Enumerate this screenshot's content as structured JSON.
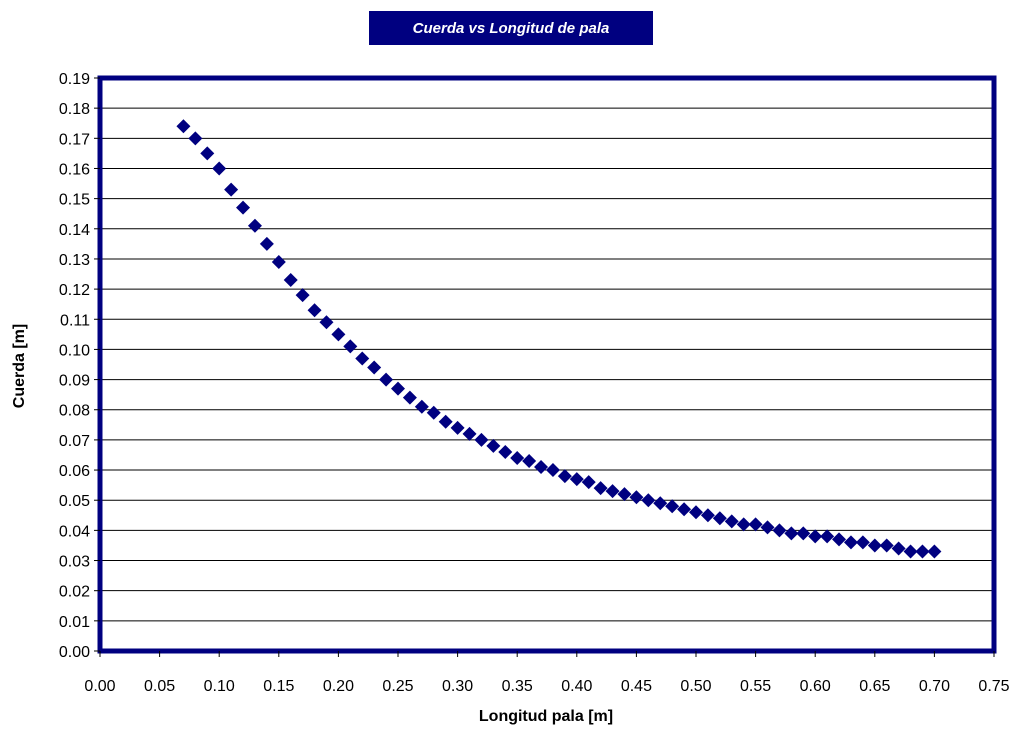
{
  "chart_data": {
    "type": "scatter",
    "title": "Cuerda vs Longitud de pala",
    "xlabel": "Longitud pala [m]",
    "ylabel": "Cuerda [m]",
    "xlim": [
      0.0,
      0.75
    ],
    "ylim": [
      0.0,
      0.19
    ],
    "x_ticks": [
      "0.00",
      "0.05",
      "0.10",
      "0.15",
      "0.20",
      "0.25",
      "0.30",
      "0.35",
      "0.40",
      "0.45",
      "0.50",
      "0.55",
      "0.60",
      "0.65",
      "0.70",
      "0.75"
    ],
    "y_ticks": [
      "0.00",
      "0.01",
      "0.02",
      "0.03",
      "0.04",
      "0.05",
      "0.06",
      "0.07",
      "0.08",
      "0.09",
      "0.10",
      "0.11",
      "0.12",
      "0.13",
      "0.14",
      "0.15",
      "0.16",
      "0.17",
      "0.18",
      "0.19"
    ],
    "grid": "horizontal",
    "legend": "none",
    "marker": "diamond",
    "colors": {
      "marker": "#000080",
      "frame": "#000080",
      "title_bg": "#000080",
      "title_text": "#ffffff",
      "grid": "#000000"
    },
    "x": [
      0.07,
      0.08,
      0.09,
      0.1,
      0.11,
      0.12,
      0.13,
      0.14,
      0.15,
      0.16,
      0.17,
      0.18,
      0.19,
      0.2,
      0.21,
      0.22,
      0.23,
      0.24,
      0.25,
      0.26,
      0.27,
      0.28,
      0.29,
      0.3,
      0.31,
      0.32,
      0.33,
      0.34,
      0.35,
      0.36,
      0.37,
      0.38,
      0.39,
      0.4,
      0.41,
      0.42,
      0.43,
      0.44,
      0.45,
      0.46,
      0.47,
      0.48,
      0.49,
      0.5,
      0.51,
      0.52,
      0.53,
      0.54,
      0.55,
      0.56,
      0.57,
      0.58,
      0.59,
      0.6,
      0.61,
      0.62,
      0.63,
      0.64,
      0.65,
      0.66,
      0.67,
      0.68,
      0.69,
      0.7
    ],
    "y": [
      0.174,
      0.17,
      0.165,
      0.16,
      0.153,
      0.147,
      0.141,
      0.135,
      0.129,
      0.123,
      0.118,
      0.113,
      0.109,
      0.105,
      0.101,
      0.097,
      0.094,
      0.09,
      0.087,
      0.084,
      0.081,
      0.079,
      0.076,
      0.074,
      0.072,
      0.07,
      0.068,
      0.066,
      0.064,
      0.063,
      0.061,
      0.06,
      0.058,
      0.057,
      0.056,
      0.054,
      0.053,
      0.052,
      0.051,
      0.05,
      0.049,
      0.048,
      0.047,
      0.046,
      0.045,
      0.044,
      0.043,
      0.042,
      0.042,
      0.041,
      0.04,
      0.039,
      0.039,
      0.038,
      0.038,
      0.037,
      0.036,
      0.036,
      0.035,
      0.035,
      0.034,
      0.033,
      0.033,
      0.033
    ]
  }
}
